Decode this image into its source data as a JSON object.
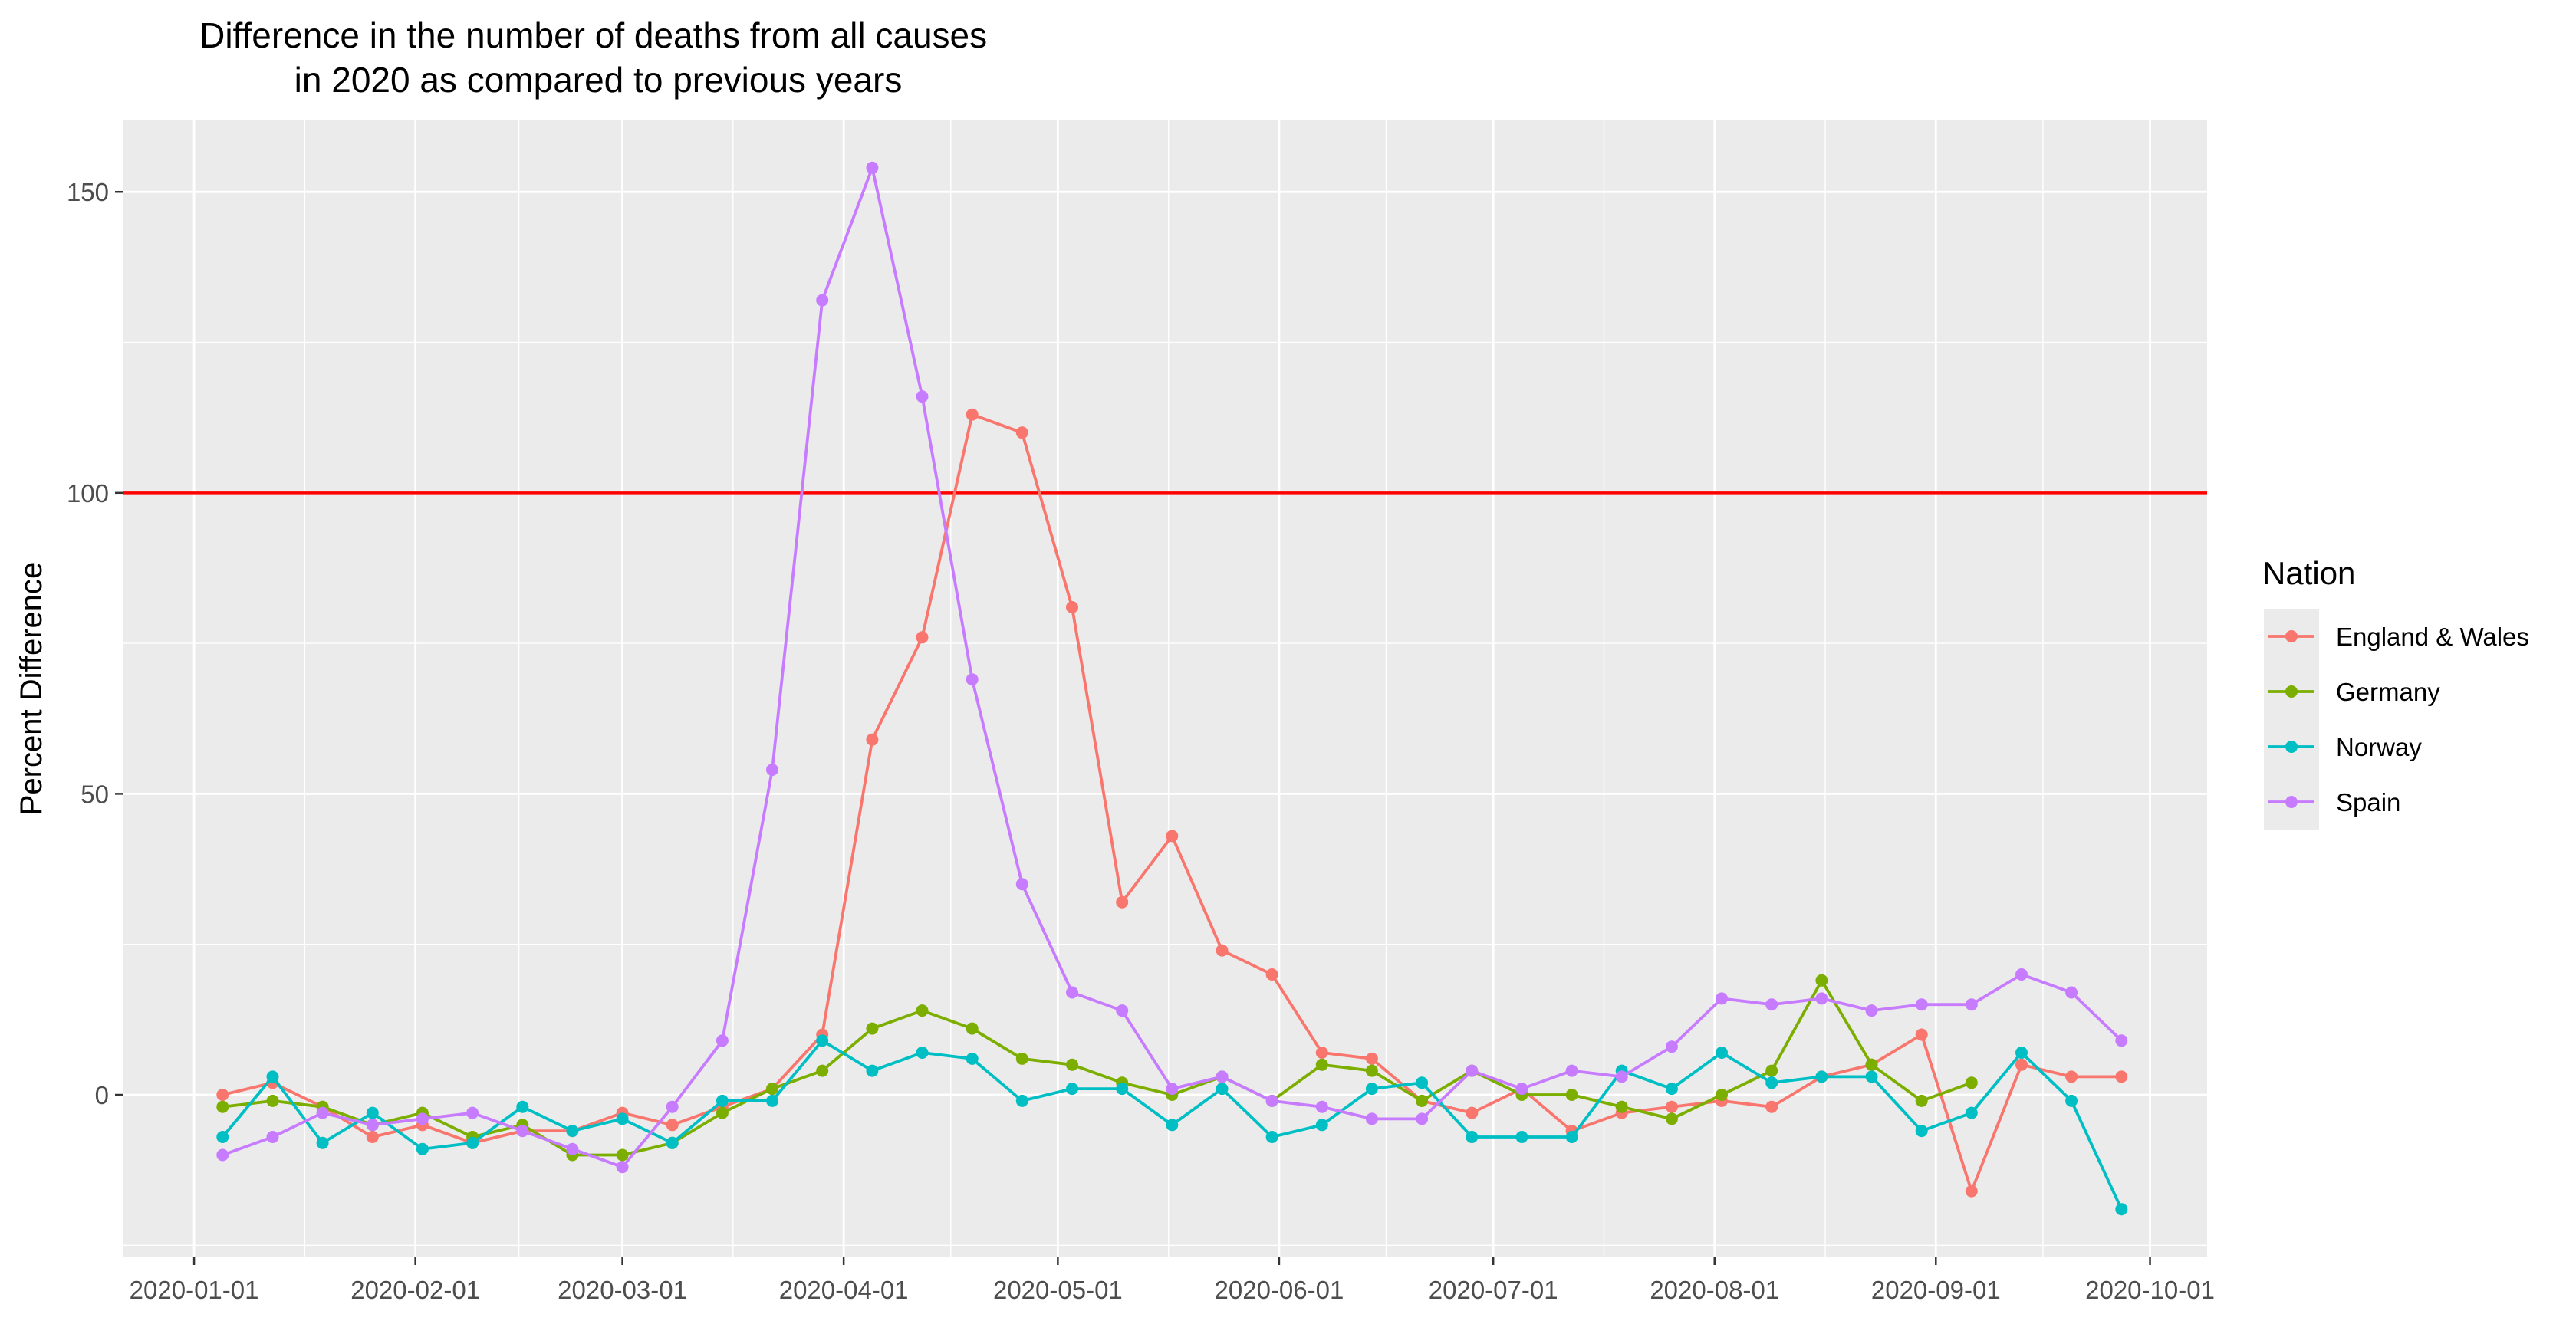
{
  "chart_data": {
    "type": "line",
    "title": "Difference in the number of deaths from all causes\nin 2020 as compared to previous years",
    "xlabel": "",
    "ylabel": "Percent Difference",
    "xlim": [
      "2019-12-22",
      "2020-10-09"
    ],
    "ylim": [
      -27,
      162
    ],
    "x_ticks": [
      "2020-01-01",
      "2020-02-01",
      "2020-03-01",
      "2020-04-01",
      "2020-05-01",
      "2020-06-01",
      "2020-07-01",
      "2020-08-01",
      "2020-09-01",
      "2020-10-01"
    ],
    "y_ticks": [
      0,
      50,
      100,
      150
    ],
    "grid": true,
    "reference_line": {
      "y": 100,
      "color": "#ff0000"
    },
    "legend": {
      "title": "Nation",
      "position": "right"
    },
    "x": [
      "2020-01-05",
      "2020-01-12",
      "2020-01-19",
      "2020-01-26",
      "2020-02-02",
      "2020-02-09",
      "2020-02-16",
      "2020-02-23",
      "2020-03-01",
      "2020-03-08",
      "2020-03-15",
      "2020-03-22",
      "2020-03-29",
      "2020-04-05",
      "2020-04-12",
      "2020-04-19",
      "2020-04-26",
      "2020-05-03",
      "2020-05-10",
      "2020-05-17",
      "2020-05-24",
      "2020-05-31",
      "2020-06-07",
      "2020-06-14",
      "2020-06-21",
      "2020-06-28",
      "2020-07-05",
      "2020-07-12",
      "2020-07-19",
      "2020-07-26",
      "2020-08-02",
      "2020-08-09",
      "2020-08-16",
      "2020-08-23",
      "2020-08-30",
      "2020-09-06",
      "2020-09-13",
      "2020-09-20",
      "2020-09-27"
    ],
    "series": [
      {
        "name": "England & Wales",
        "color": "#F8766D",
        "values": [
          0,
          2,
          -2,
          -7,
          -5,
          -8,
          -6,
          -6,
          -3,
          -5,
          -2,
          1,
          10,
          59,
          76,
          113,
          110,
          81,
          32,
          43,
          24,
          20,
          7,
          6,
          -1,
          -3,
          1,
          -6,
          -3,
          -2,
          -1,
          -2,
          3,
          5,
          10,
          -16,
          5,
          3,
          3
        ]
      },
      {
        "name": "Germany",
        "color": "#7CAE00",
        "values": [
          -2,
          -1,
          -2,
          -5,
          -3,
          -7,
          -5,
          -10,
          -10,
          -8,
          -3,
          1,
          4,
          11,
          14,
          11,
          6,
          5,
          2,
          0,
          3,
          -1,
          5,
          4,
          -1,
          4,
          0,
          0,
          -2,
          -4,
          0,
          4,
          19,
          5,
          -1,
          2,
          null,
          null,
          null
        ]
      },
      {
        "name": "Norway",
        "color": "#00BFC4",
        "values": [
          -7,
          3,
          -8,
          -3,
          -9,
          -8,
          -2,
          -6,
          -4,
          -8,
          -1,
          -1,
          9,
          4,
          7,
          6,
          -1,
          1,
          1,
          -5,
          1,
          -7,
          -5,
          1,
          2,
          -7,
          -7,
          -7,
          4,
          1,
          7,
          2,
          3,
          3,
          -6,
          -3,
          7,
          -1,
          -19
        ]
      },
      {
        "name": "Spain",
        "color": "#C77CFF",
        "values": [
          -10,
          -7,
          -3,
          -5,
          -4,
          -3,
          -6,
          -9,
          -12,
          -2,
          9,
          54,
          132,
          154,
          116,
          69,
          35,
          17,
          14,
          1,
          3,
          -1,
          -2,
          -4,
          -4,
          4,
          1,
          4,
          3,
          8,
          16,
          15,
          16,
          14,
          15,
          15,
          20,
          17,
          9
        ]
      }
    ]
  }
}
